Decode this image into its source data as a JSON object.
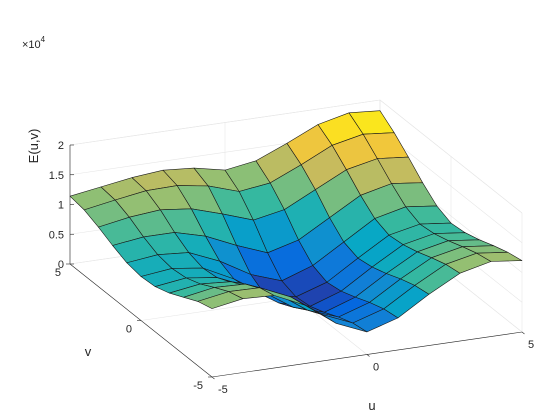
{
  "chart_data": {
    "type": "surface3d",
    "title": "",
    "xlabel": "u",
    "ylabel": "v",
    "zlabel": "E(u,v)",
    "z_exponent_label": "×10",
    "z_exponent_power": "4",
    "xlim": [
      -5,
      5
    ],
    "ylim": [
      -5,
      5
    ],
    "zlim": [
      0,
      2
    ],
    "x_ticks": [
      {
        "v": -5,
        "label": "-5"
      },
      {
        "v": 0,
        "label": "0"
      },
      {
        "v": 5,
        "label": "5"
      }
    ],
    "y_ticks": [
      {
        "v": -5,
        "label": "-5"
      },
      {
        "v": 0,
        "label": "0"
      },
      {
        "v": 5,
        "label": "5"
      }
    ],
    "z_ticks": [
      {
        "v": 0,
        "label": "0"
      },
      {
        "v": 0.5,
        "label": "0.5"
      },
      {
        "v": 1,
        "label": "1"
      },
      {
        "v": 1.5,
        "label": "1.5"
      },
      {
        "v": 2,
        "label": "2"
      }
    ],
    "grid": true,
    "colormap": "parula",
    "colormap_stops": [
      "#352a87",
      "#0363e1",
      "#1485d4",
      "#06a7c6",
      "#38b99e",
      "#92bf73",
      "#d9ba56",
      "#fcce2e",
      "#f9fb0e"
    ],
    "u": [
      -5,
      -4,
      -3,
      -2,
      -1,
      0,
      1,
      2,
      3,
      4,
      5
    ],
    "v": [
      5,
      4,
      3,
      2,
      1,
      0,
      -1,
      -2,
      -3,
      -4,
      -5
    ],
    "z": [
      [
        1.14,
        1.22,
        1.3,
        1.35,
        1.31,
        1.2,
        1.28,
        1.5,
        1.74,
        1.86,
        1.82
      ],
      [
        1.1,
        1.19,
        1.27,
        1.28,
        1.2,
        1.03,
        1.1,
        1.33,
        1.58,
        1.69,
        1.64
      ],
      [
        1.0,
        1.09,
        1.14,
        1.08,
        0.92,
        0.74,
        0.84,
        1.1,
        1.36,
        1.47,
        1.42
      ],
      [
        0.88,
        0.95,
        0.95,
        0.81,
        0.58,
        0.38,
        0.52,
        0.82,
        1.12,
        1.24,
        1.18
      ],
      [
        0.78,
        0.84,
        0.8,
        0.58,
        0.28,
        0.1,
        0.28,
        0.6,
        0.92,
        1.04,
        0.98
      ],
      [
        0.74,
        0.8,
        0.73,
        0.47,
        0.13,
        0.02,
        0.19,
        0.52,
        0.83,
        0.94,
        0.88
      ],
      [
        0.76,
        0.83,
        0.76,
        0.51,
        0.18,
        0.05,
        0.23,
        0.56,
        0.86,
        0.97,
        0.91
      ],
      [
        0.84,
        0.92,
        0.88,
        0.64,
        0.3,
        0.14,
        0.32,
        0.64,
        0.93,
        1.04,
        0.98
      ],
      [
        0.96,
        1.05,
        1.03,
        0.8,
        0.44,
        0.25,
        0.42,
        0.74,
        1.02,
        1.13,
        1.07
      ],
      [
        1.08,
        1.17,
        1.16,
        0.93,
        0.56,
        0.34,
        0.5,
        0.82,
        1.1,
        1.21,
        1.15
      ],
      [
        1.15,
        1.24,
        1.22,
        0.98,
        0.6,
        0.38,
        0.54,
        0.86,
        1.14,
        1.26,
        1.2
      ]
    ]
  }
}
